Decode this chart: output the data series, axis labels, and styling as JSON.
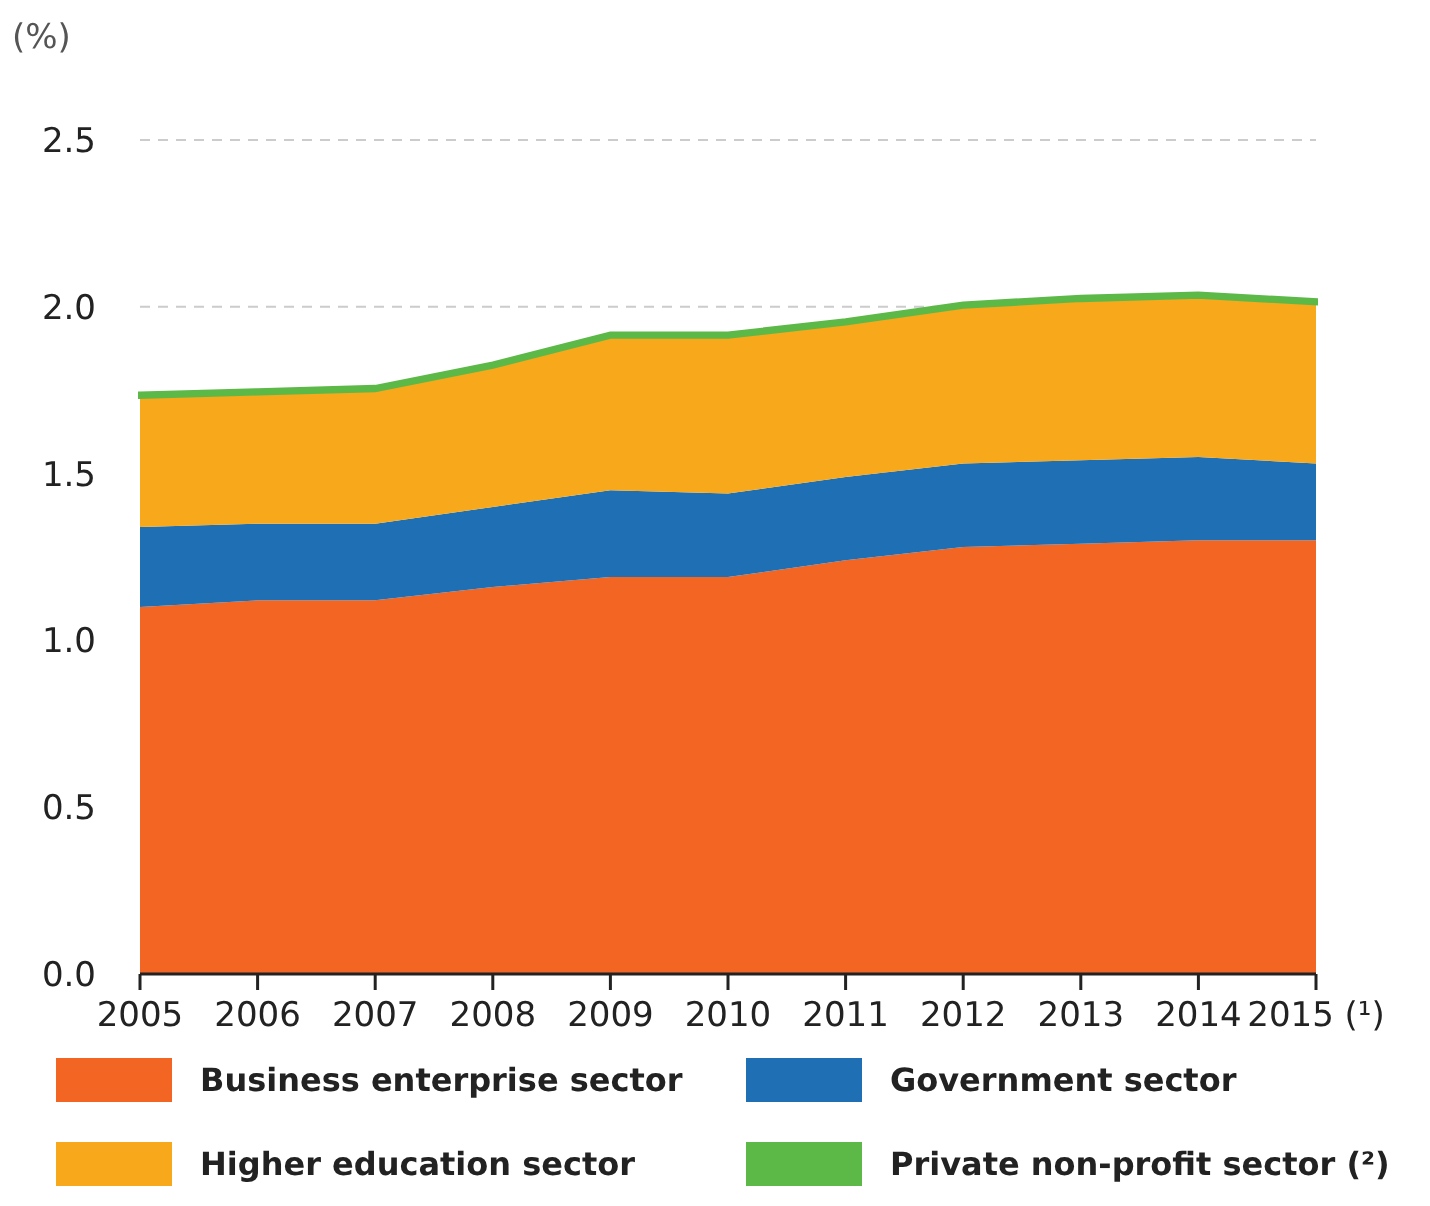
{
  "chart_data": {
    "type": "area",
    "stacked": true,
    "ylabel": "(%)",
    "x": [
      2005,
      2006,
      2007,
      2008,
      2009,
      2010,
      2011,
      2012,
      2013,
      2014,
      2015
    ],
    "xlim": [
      2005,
      2015
    ],
    "xticks": [
      2005,
      2006,
      2007,
      2008,
      2009,
      2010,
      2011,
      2012,
      2013,
      2014,
      {
        "value": 2015,
        "label": "2015 (¹)"
      }
    ],
    "ylim": [
      0,
      2.5
    ],
    "yticks": [
      {
        "value": 0,
        "label": "0.0"
      },
      {
        "value": 0.5,
        "label": "0.5"
      },
      {
        "value": 1,
        "label": "1.0"
      },
      {
        "value": 1.5,
        "label": "1.5"
      },
      {
        "value": 2,
        "label": "2.0"
      },
      {
        "value": 2.5,
        "label": "2.5"
      }
    ],
    "grid": "y",
    "legend": "bottom",
    "series": [
      {
        "name": "Business enterprise sector",
        "color": "#f26522",
        "values": [
          1.1,
          1.12,
          1.12,
          1.16,
          1.19,
          1.19,
          1.24,
          1.28,
          1.29,
          1.3,
          1.3
        ]
      },
      {
        "name": "Government sector",
        "color": "#1f6fb5",
        "values": [
          0.24,
          0.23,
          0.23,
          0.24,
          0.26,
          0.25,
          0.25,
          0.25,
          0.25,
          0.25,
          0.23
        ]
      },
      {
        "name": "Higher education sector",
        "color": "#f7a81b",
        "values": [
          0.39,
          0.39,
          0.4,
          0.42,
          0.46,
          0.47,
          0.46,
          0.47,
          0.48,
          0.48,
          0.48
        ]
      },
      {
        "name": "Private non-profit sector (²)",
        "color": "#5cb947",
        "values": [
          0.01,
          0.01,
          0.01,
          0.01,
          0.01,
          0.01,
          0.01,
          0.01,
          0.01,
          0.01,
          0.01
        ]
      }
    ]
  }
}
